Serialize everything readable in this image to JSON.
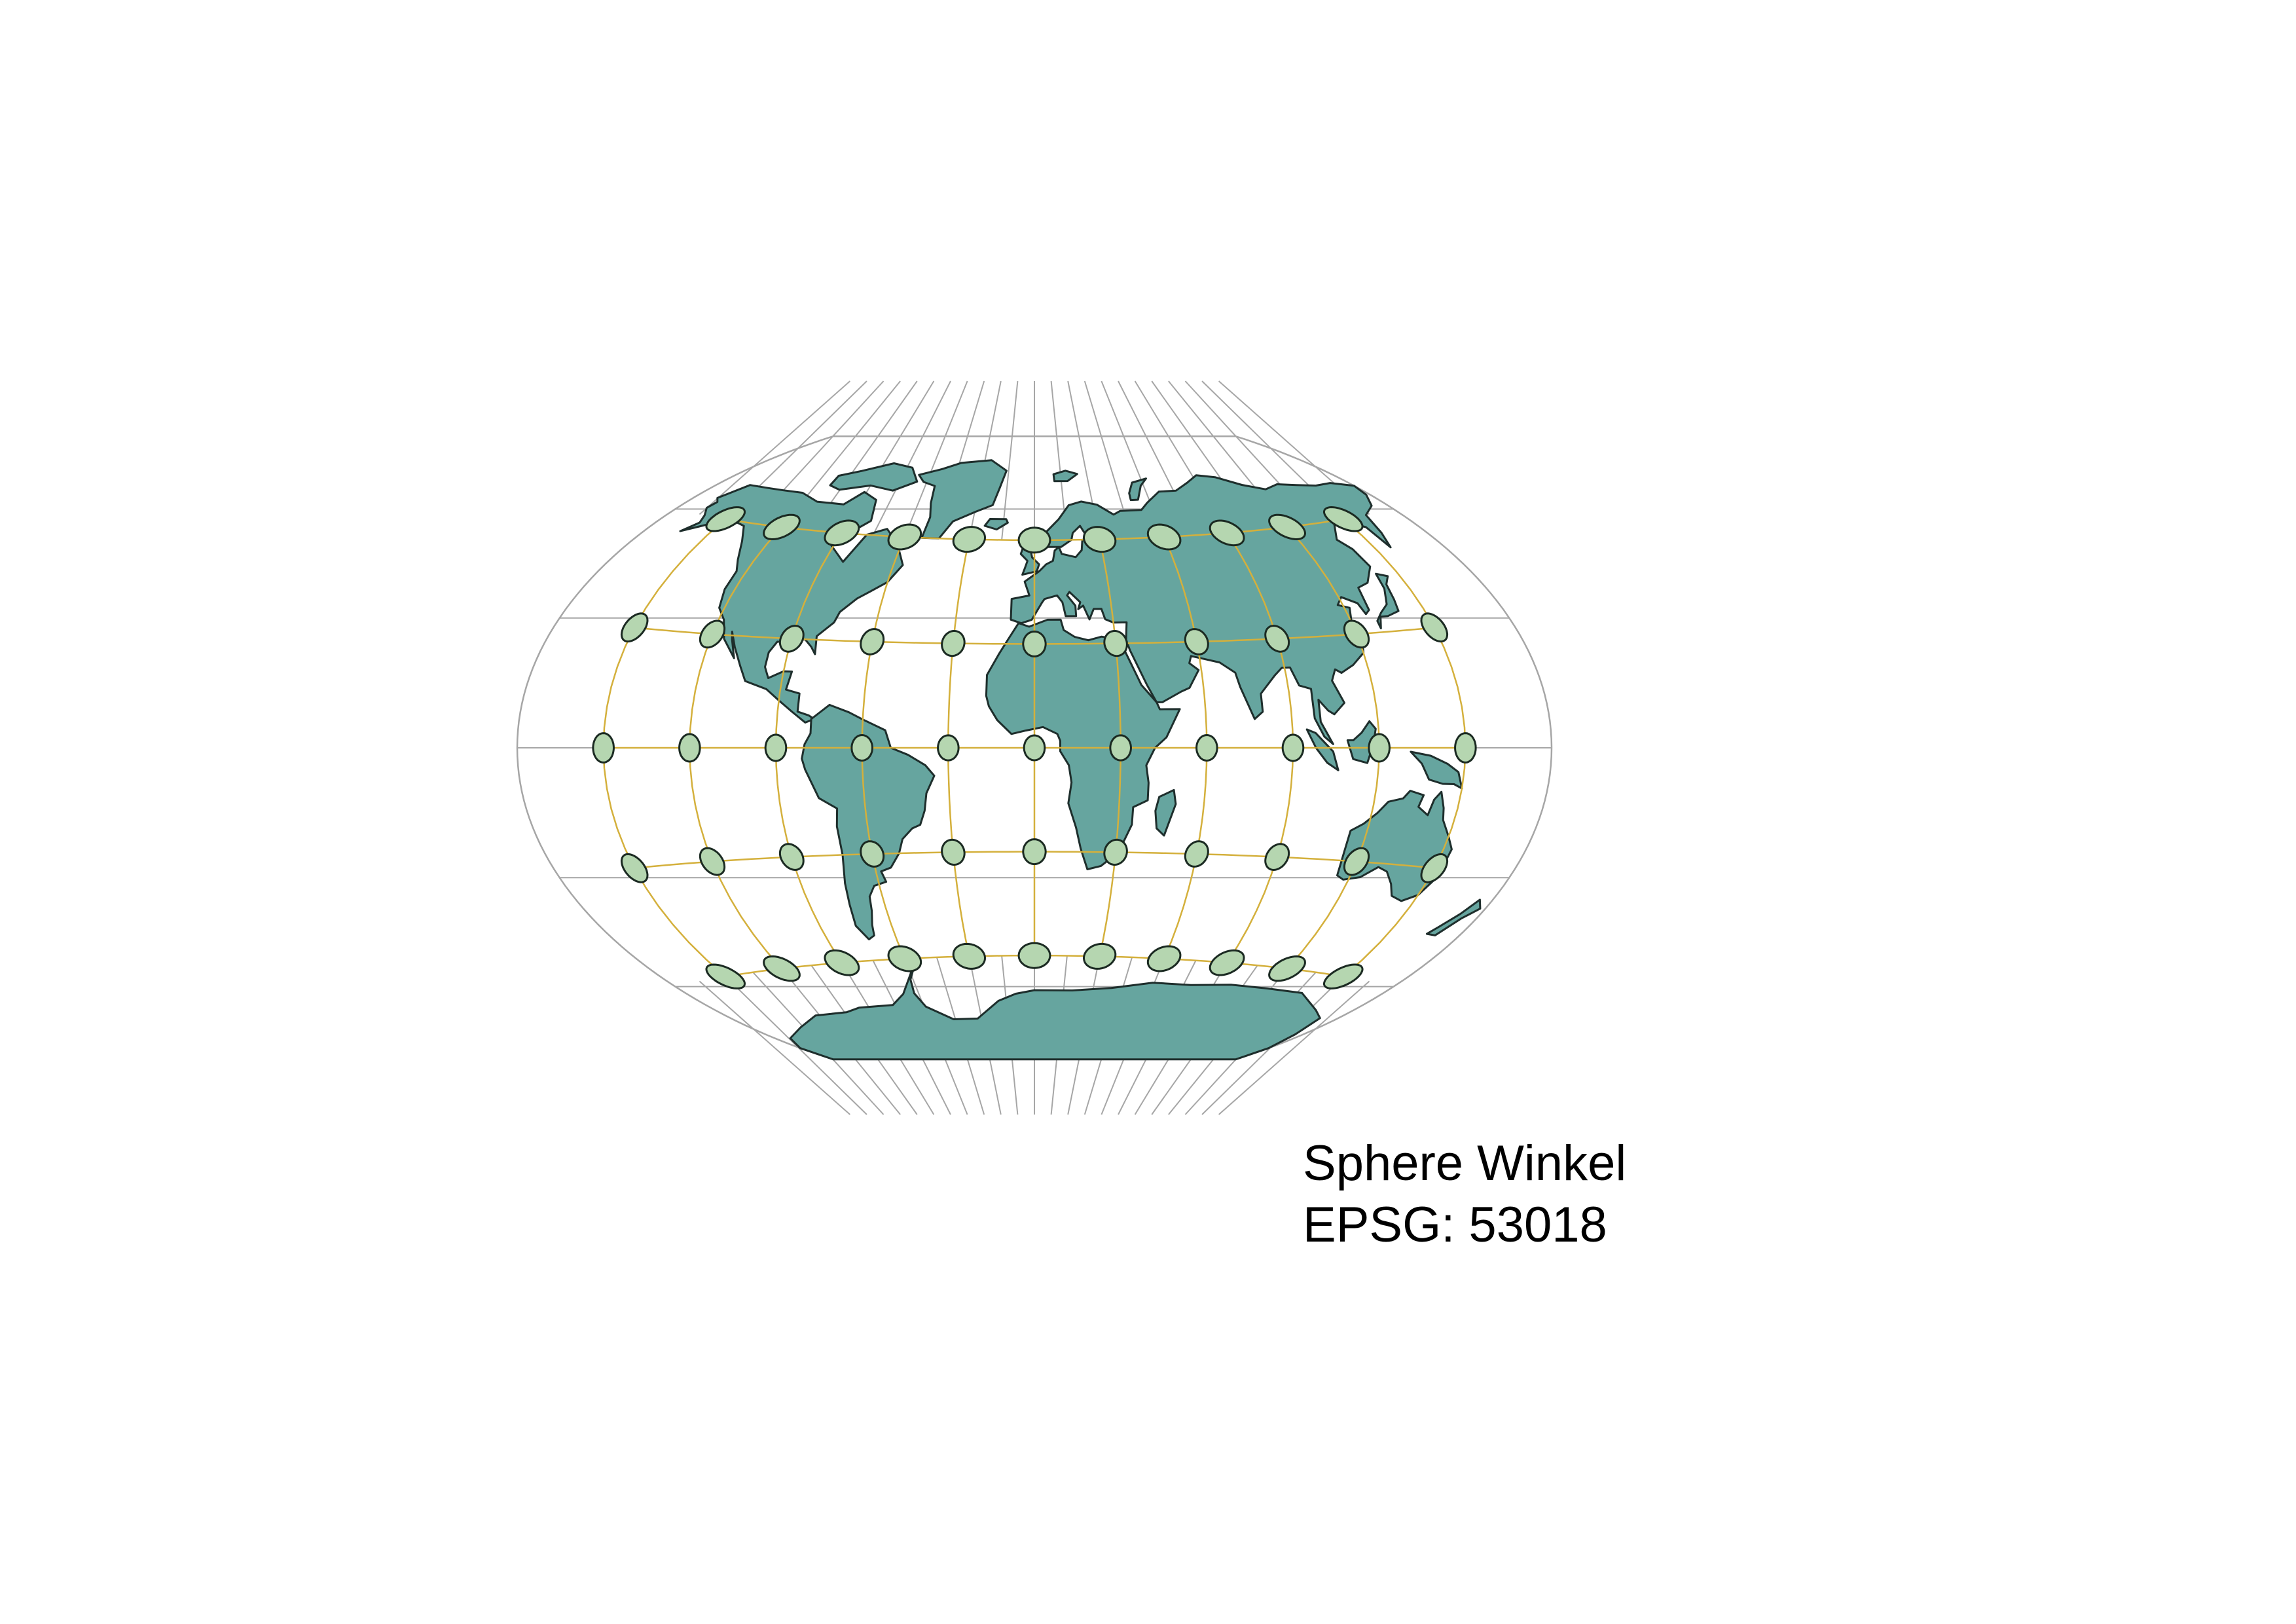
{
  "map": {
    "projection_name": "Sphere Winkel",
    "epsg_label": "EPSG: 53018",
    "graticule_color": "#a6a6a6",
    "indicatrix_grid_color": "#d4b03c",
    "land_fill": "#66a59f",
    "land_stroke": "#1e2e2c",
    "ellipse_fill": "#b5d6b0",
    "ellipse_stroke": "#1b2a22",
    "indicatrix": {
      "latitudes": [
        60,
        30,
        0,
        -30,
        -60
      ],
      "longitudes": [
        -150,
        -120,
        -90,
        -60,
        -30,
        0,
        30,
        60,
        90,
        120,
        150
      ]
    }
  }
}
